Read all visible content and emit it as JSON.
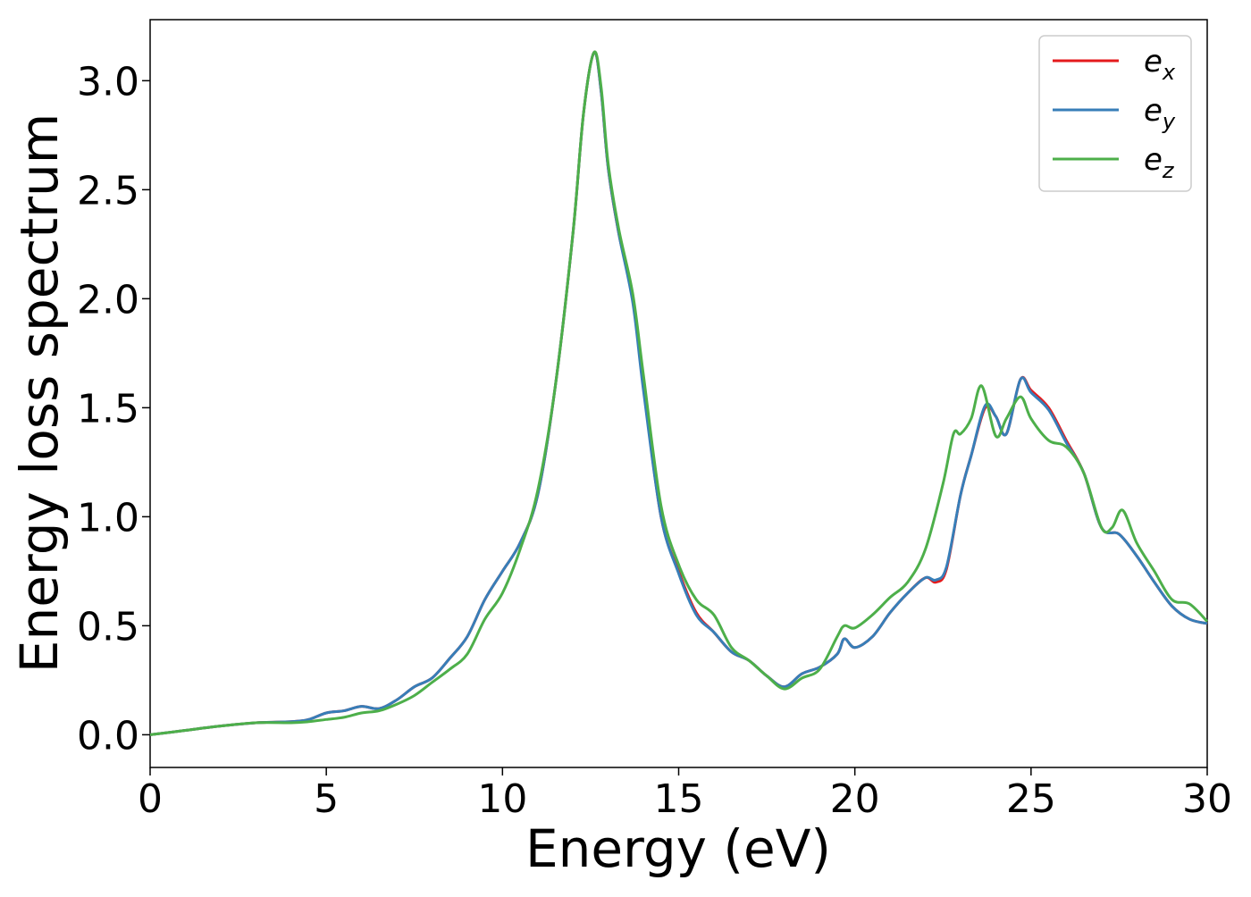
{
  "chart_data": {
    "type": "line",
    "title": "",
    "xlabel": "Energy (eV)",
    "ylabel": "Energy loss spectrum",
    "xlim": [
      0,
      30
    ],
    "ylim": [
      -0.15,
      3.28
    ],
    "xticks": [
      0,
      5,
      10,
      15,
      20,
      25,
      30
    ],
    "yticks": [
      0.0,
      0.5,
      1.0,
      1.5,
      2.0,
      2.5,
      3.0
    ],
    "xtick_labels": [
      "0",
      "5",
      "10",
      "15",
      "20",
      "25",
      "30"
    ],
    "ytick_labels": [
      "0.0",
      "0.5",
      "1.0",
      "1.5",
      "2.0",
      "2.5",
      "3.0"
    ],
    "grid": false,
    "legend_position": "top-right",
    "series": [
      {
        "name": "e_x",
        "legend_base": "e",
        "legend_sub": "x",
        "color": "#e41a1c",
        "x": [
          0,
          1,
          2,
          3,
          4,
          4.5,
          5,
          5.5,
          6,
          6.5,
          7,
          7.5,
          8,
          8.5,
          9,
          9.5,
          10,
          10.5,
          11,
          11.5,
          12,
          12.3,
          12.6,
          12.8,
          13.0,
          13.3,
          13.7,
          14.0,
          14.5,
          15,
          15.5,
          16,
          16.5,
          17,
          17.5,
          18,
          18.5,
          19,
          19.5,
          19.7,
          20,
          20.5,
          21,
          21.5,
          22,
          22.3,
          22.6,
          23,
          23.3,
          23.7,
          24,
          24.3,
          24.7,
          25,
          25.5,
          26,
          26.5,
          27,
          27.5,
          28,
          28.5,
          29,
          29.5,
          30
        ],
        "y": [
          0.0,
          0.02,
          0.04,
          0.055,
          0.06,
          0.07,
          0.1,
          0.11,
          0.13,
          0.12,
          0.16,
          0.22,
          0.26,
          0.35,
          0.45,
          0.62,
          0.75,
          0.88,
          1.1,
          1.6,
          2.3,
          2.85,
          3.13,
          2.95,
          2.6,
          2.3,
          2.0,
          1.6,
          1.0,
          0.75,
          0.56,
          0.47,
          0.38,
          0.34,
          0.27,
          0.22,
          0.28,
          0.31,
          0.37,
          0.44,
          0.4,
          0.45,
          0.56,
          0.65,
          0.72,
          0.7,
          0.76,
          1.1,
          1.28,
          1.5,
          1.46,
          1.38,
          1.63,
          1.58,
          1.5,
          1.35,
          1.2,
          0.95,
          0.92,
          0.82,
          0.7,
          0.59,
          0.53,
          0.51
        ]
      },
      {
        "name": "e_y",
        "legend_base": "e",
        "legend_sub": "y",
        "color": "#377eb8",
        "x": [
          0,
          1,
          2,
          3,
          4,
          4.5,
          5,
          5.5,
          6,
          6.5,
          7,
          7.5,
          8,
          8.5,
          9,
          9.5,
          10,
          10.5,
          11,
          11.5,
          12,
          12.3,
          12.6,
          12.8,
          13.0,
          13.3,
          13.7,
          14.0,
          14.5,
          15,
          15.5,
          16,
          16.5,
          17,
          17.5,
          18,
          18.5,
          19,
          19.5,
          19.7,
          20,
          20.5,
          21,
          21.5,
          22,
          22.3,
          22.6,
          23,
          23.3,
          23.7,
          24,
          24.3,
          24.7,
          25,
          25.5,
          26,
          26.5,
          27,
          27.5,
          28,
          28.5,
          29,
          29.5,
          30
        ],
        "y": [
          0.0,
          0.02,
          0.04,
          0.055,
          0.06,
          0.07,
          0.1,
          0.11,
          0.13,
          0.12,
          0.16,
          0.22,
          0.26,
          0.35,
          0.45,
          0.62,
          0.75,
          0.88,
          1.1,
          1.6,
          2.3,
          2.85,
          3.13,
          2.95,
          2.6,
          2.3,
          1.98,
          1.58,
          1.0,
          0.74,
          0.55,
          0.47,
          0.38,
          0.34,
          0.27,
          0.22,
          0.28,
          0.31,
          0.37,
          0.44,
          0.4,
          0.45,
          0.56,
          0.65,
          0.72,
          0.71,
          0.77,
          1.1,
          1.28,
          1.51,
          1.46,
          1.38,
          1.63,
          1.57,
          1.49,
          1.34,
          1.2,
          0.95,
          0.92,
          0.82,
          0.7,
          0.59,
          0.53,
          0.51
        ]
      },
      {
        "name": "e_z",
        "legend_base": "e",
        "legend_sub": "z",
        "color": "#4daf4a",
        "x": [
          0,
          1,
          2,
          3,
          4,
          4.5,
          5,
          5.5,
          6,
          6.5,
          7,
          7.5,
          8,
          8.5,
          9,
          9.5,
          10,
          10.5,
          11,
          11.5,
          12,
          12.3,
          12.6,
          12.8,
          13.0,
          13.3,
          13.7,
          14.0,
          14.5,
          15,
          15.5,
          16,
          16.5,
          17,
          17.5,
          18,
          18.5,
          19,
          19.5,
          19.7,
          20,
          20.5,
          21,
          21.5,
          22,
          22.5,
          22.8,
          23,
          23.3,
          23.6,
          24,
          24.3,
          24.7,
          25,
          25.5,
          26,
          26.5,
          27,
          27.3,
          27.6,
          28,
          28.5,
          29,
          29.5,
          30
        ],
        "y": [
          0.0,
          0.02,
          0.04,
          0.055,
          0.055,
          0.06,
          0.07,
          0.08,
          0.1,
          0.11,
          0.14,
          0.18,
          0.24,
          0.3,
          0.37,
          0.53,
          0.65,
          0.85,
          1.12,
          1.6,
          2.3,
          2.85,
          3.13,
          2.97,
          2.62,
          2.32,
          2.02,
          1.65,
          1.05,
          0.78,
          0.62,
          0.55,
          0.4,
          0.34,
          0.27,
          0.21,
          0.26,
          0.3,
          0.45,
          0.5,
          0.49,
          0.55,
          0.63,
          0.7,
          0.85,
          1.15,
          1.38,
          1.38,
          1.45,
          1.6,
          1.37,
          1.45,
          1.55,
          1.45,
          1.35,
          1.32,
          1.2,
          0.95,
          0.95,
          1.03,
          0.88,
          0.75,
          0.62,
          0.6,
          0.52
        ]
      }
    ]
  }
}
